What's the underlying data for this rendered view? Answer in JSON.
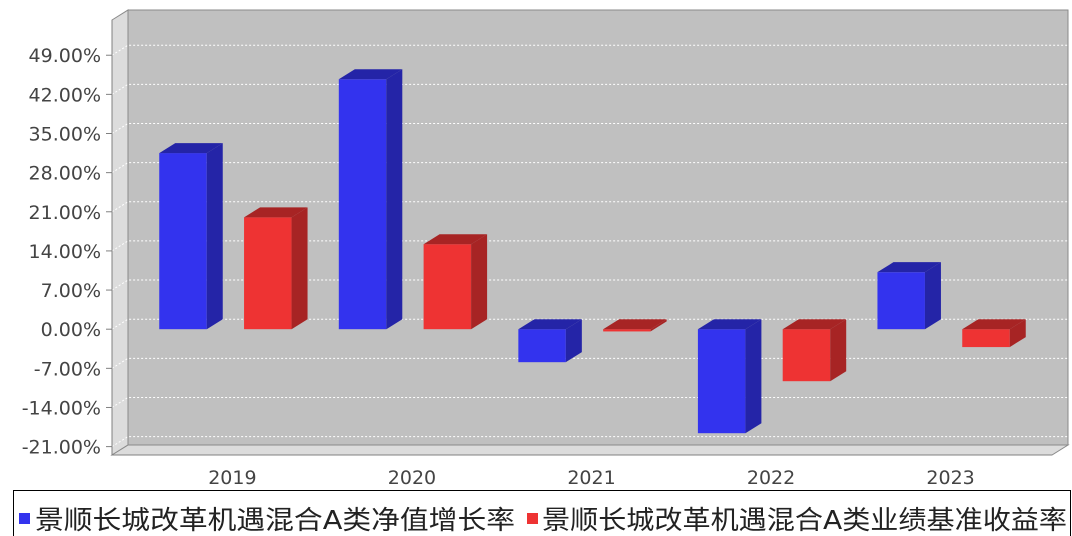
{
  "chart_data": {
    "type": "bar",
    "three_d": true,
    "categories": [
      "2019",
      "2020",
      "2021",
      "2022",
      "2023"
    ],
    "series": [
      {
        "name": "景顺长城改革机遇混合A类净值增长率",
        "color": "#3333ee",
        "values": [
          31.5,
          44.7,
          -5.9,
          -18.6,
          10.2
        ]
      },
      {
        "name": "景顺长城改革机遇混合A类业绩基准收益率",
        "color": "#ee3333",
        "values": [
          20.0,
          15.2,
          -0.4,
          -9.3,
          -3.2
        ]
      }
    ],
    "yticks": [
      -21,
      -14,
      -7,
      0,
      7,
      14,
      21,
      28,
      35,
      42,
      49
    ],
    "ytick_labels": [
      "-21.00%",
      "-14.00%",
      "-7.00%",
      "0.00%",
      "7.00%",
      "14.00%",
      "21.00%",
      "28.00%",
      "35.00%",
      "42.00%",
      "49.00%"
    ],
    "ylim": [
      -22.5,
      55.3
    ],
    "grid": true,
    "legend_position": "bottom"
  }
}
